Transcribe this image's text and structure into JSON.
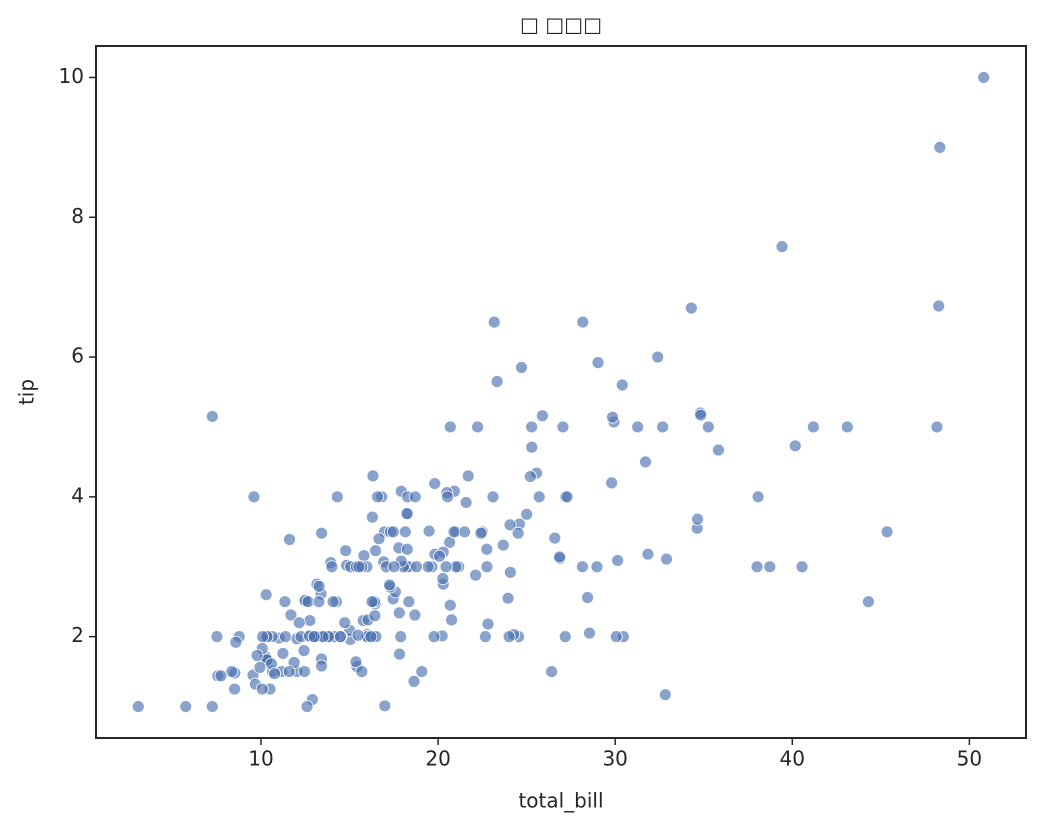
{
  "chart_data": {
    "type": "scatter",
    "title": "□ □□□",
    "xlabel": "total_bill",
    "ylabel": "tip",
    "color": "#4c72b0",
    "x": [
      16.99,
      10.34,
      21.01,
      23.68,
      24.59,
      25.29,
      8.77,
      26.88,
      15.04,
      14.78,
      10.27,
      35.26,
      15.42,
      18.43,
      14.83,
      21.58,
      10.33,
      16.29,
      16.97,
      20.65,
      17.92,
      20.29,
      15.77,
      39.42,
      19.82,
      17.81,
      13.37,
      12.69,
      21.7,
      19.65,
      9.55,
      18.35,
      15.06,
      20.69,
      17.78,
      24.06,
      16.31,
      16.93,
      18.69,
      31.27,
      16.04,
      17.46,
      13.94,
      9.68,
      30.4,
      18.29,
      22.23,
      32.4,
      28.55,
      18.04,
      12.54,
      10.29,
      34.81,
      9.94,
      25.56,
      19.49,
      38.01,
      26.41,
      11.24,
      48.27,
      20.29,
      13.81,
      11.02,
      18.29,
      17.59,
      20.08,
      16.45,
      3.07,
      20.23,
      15.01,
      12.02,
      17.07,
      26.86,
      25.28,
      14.73,
      10.51,
      17.92,
      27.2,
      22.76,
      17.29,
      19.44,
      16.66,
      10.07,
      32.68,
      15.98,
      34.83,
      13.03,
      18.28,
      24.71,
      21.16,
      28.97,
      22.49,
      5.75,
      16.32,
      22.75,
      40.17,
      27.28,
      12.03,
      21.01,
      12.46,
      11.35,
      15.38,
      44.3,
      22.42,
      20.92,
      15.36,
      20.49,
      25.21,
      18.24,
      14.31,
      14,
      7.25,
      38.07,
      23.95,
      25.71,
      17.31,
      29.93,
      10.65,
      12.43,
      24.08,
      11.69,
      13.42,
      14.26,
      15.95,
      12.48,
      29.8,
      8.52,
      14.52,
      11.38,
      22.82,
      19.08,
      20.27,
      11.17,
      12.26,
      18.26,
      8.51,
      10.33,
      14.15,
      16,
      13.16,
      17.47,
      34.3,
      41.19,
      27.05,
      16.43,
      8.35,
      18.64,
      11.87,
      9.78,
      7.51,
      14.07,
      13.13,
      17.26,
      24.55,
      19.77,
      29.85,
      48.17,
      25,
      13.39,
      16.49,
      21.5,
      12.66,
      16.21,
      13.81,
      17.51,
      24.52,
      20.76,
      31.71,
      10.59,
      10.63,
      50.81,
      15.81,
      7.25,
      31.85,
      16.82,
      32.9,
      17.89,
      14.48,
      9.6,
      34.63,
      34.65,
      23.33,
      45.35,
      23.17,
      40.55,
      20.69,
      20.9,
      30.46,
      18.15,
      23.1,
      15.69,
      19.81,
      28.44,
      15.48,
      16.58,
      7.56,
      10.34,
      43.11,
      13,
      13.51,
      18.71,
      12.74,
      13,
      16.4,
      20.53,
      16.47,
      26.59,
      38.73,
      24.27,
      12.76,
      30.06,
      25.89,
      48.33,
      13.27,
      28.17,
      12.9,
      28.15,
      11.59,
      7.74,
      30.14,
      12.16,
      13.42,
      8.58,
      15.98,
      13.42,
      16.27,
      10.09,
      20.45,
      13.28,
      22.12,
      24.01,
      15.69,
      11.61,
      10.77,
      15.53,
      10.07,
      12.6,
      32.83,
      35.83,
      29.03,
      27.18,
      22.67,
      17.82,
      18.78
    ],
    "values": [
      1.01,
      1.66,
      3.5,
      3.31,
      3.61,
      4.71,
      2,
      3.12,
      1.96,
      3.23,
      1.71,
      5,
      1.57,
      3,
      3.02,
      3.92,
      1.67,
      3.71,
      3.5,
      3.35,
      4.08,
      2.75,
      2.23,
      7.58,
      3.18,
      2.34,
      2,
      2,
      4.3,
      3,
      1.45,
      2.5,
      3,
      2.45,
      3.27,
      3.6,
      2,
      3.07,
      2.31,
      5,
      2.24,
      2.54,
      3.06,
      1.32,
      5.6,
      3,
      5,
      6,
      2.05,
      3,
      2.5,
      2.6,
      5.2,
      1.56,
      4.34,
      3.51,
      3,
      1.5,
      1.76,
      6.73,
      3.21,
      2,
      1.98,
      3.76,
      2.64,
      3.15,
      2.47,
      1,
      2.01,
      2.09,
      1.97,
      3,
      3.14,
      5,
      2.2,
      1.25,
      3.08,
      4,
      3,
      2.71,
      3,
      3.4,
      1.83,
      5,
      2.03,
      5.17,
      2,
      4,
      5.85,
      3,
      3,
      3.5,
      1,
      4.3,
      3.25,
      4.73,
      4,
      1.5,
      3,
      1.5,
      2.5,
      3,
      2.5,
      3.48,
      4.08,
      1.64,
      4.06,
      4.29,
      3.76,
      4,
      3,
      1,
      4,
      2.55,
      4,
      3.5,
      5.07,
      1.5,
      1.8,
      2.92,
      2.31,
      1.68,
      2.5,
      2,
      2.52,
      4.2,
      1.48,
      2,
      2,
      2.18,
      1.5,
      2.83,
      1.5,
      2,
      3.25,
      1.25,
      2,
      2,
      2,
      2.75,
      3.5,
      6.7,
      5,
      5,
      2.3,
      1.5,
      1.36,
      1.63,
      1.73,
      2,
      2.5,
      2,
      2.74,
      2,
      2,
      5.14,
      5,
      3.75,
      2.61,
      2,
      3.5,
      2.5,
      2,
      2,
      3,
      3.48,
      2.24,
      4.5,
      1.61,
      2,
      10,
      3.16,
      5.15,
      3.18,
      4,
      3.11,
      2,
      2,
      4,
      3.55,
      3.68,
      5.65,
      3.5,
      6.5,
      3,
      5,
      3.5,
      2,
      3.5,
      4,
      1.5,
      4.19,
      2.56,
      2.02,
      4,
      1.44,
      2,
      5,
      2,
      2,
      4,
      2.01,
      2,
      2.5,
      4,
      3.23,
      3.41,
      3,
      2.03,
      2.23,
      2,
      5.16,
      9,
      2.5,
      6.5,
      1.1,
      3,
      1.5,
      1.44,
      3.09,
      2.2,
      3.48,
      1.92,
      3,
      1.58,
      2.5,
      2,
      3,
      2.72,
      2.88,
      2,
      3,
      3.39,
      1.47,
      3,
      1.25,
      1,
      1.17,
      4.67,
      5.92,
      2,
      2,
      1.75,
      3
    ],
    "xlim": [
      0.683,
      53.197
    ],
    "xticks": [
      10,
      20,
      30,
      40,
      50
    ],
    "ylim": [
      0.55,
      10.45
    ],
    "yticks": [
      2,
      4,
      6,
      8,
      10
    ]
  }
}
